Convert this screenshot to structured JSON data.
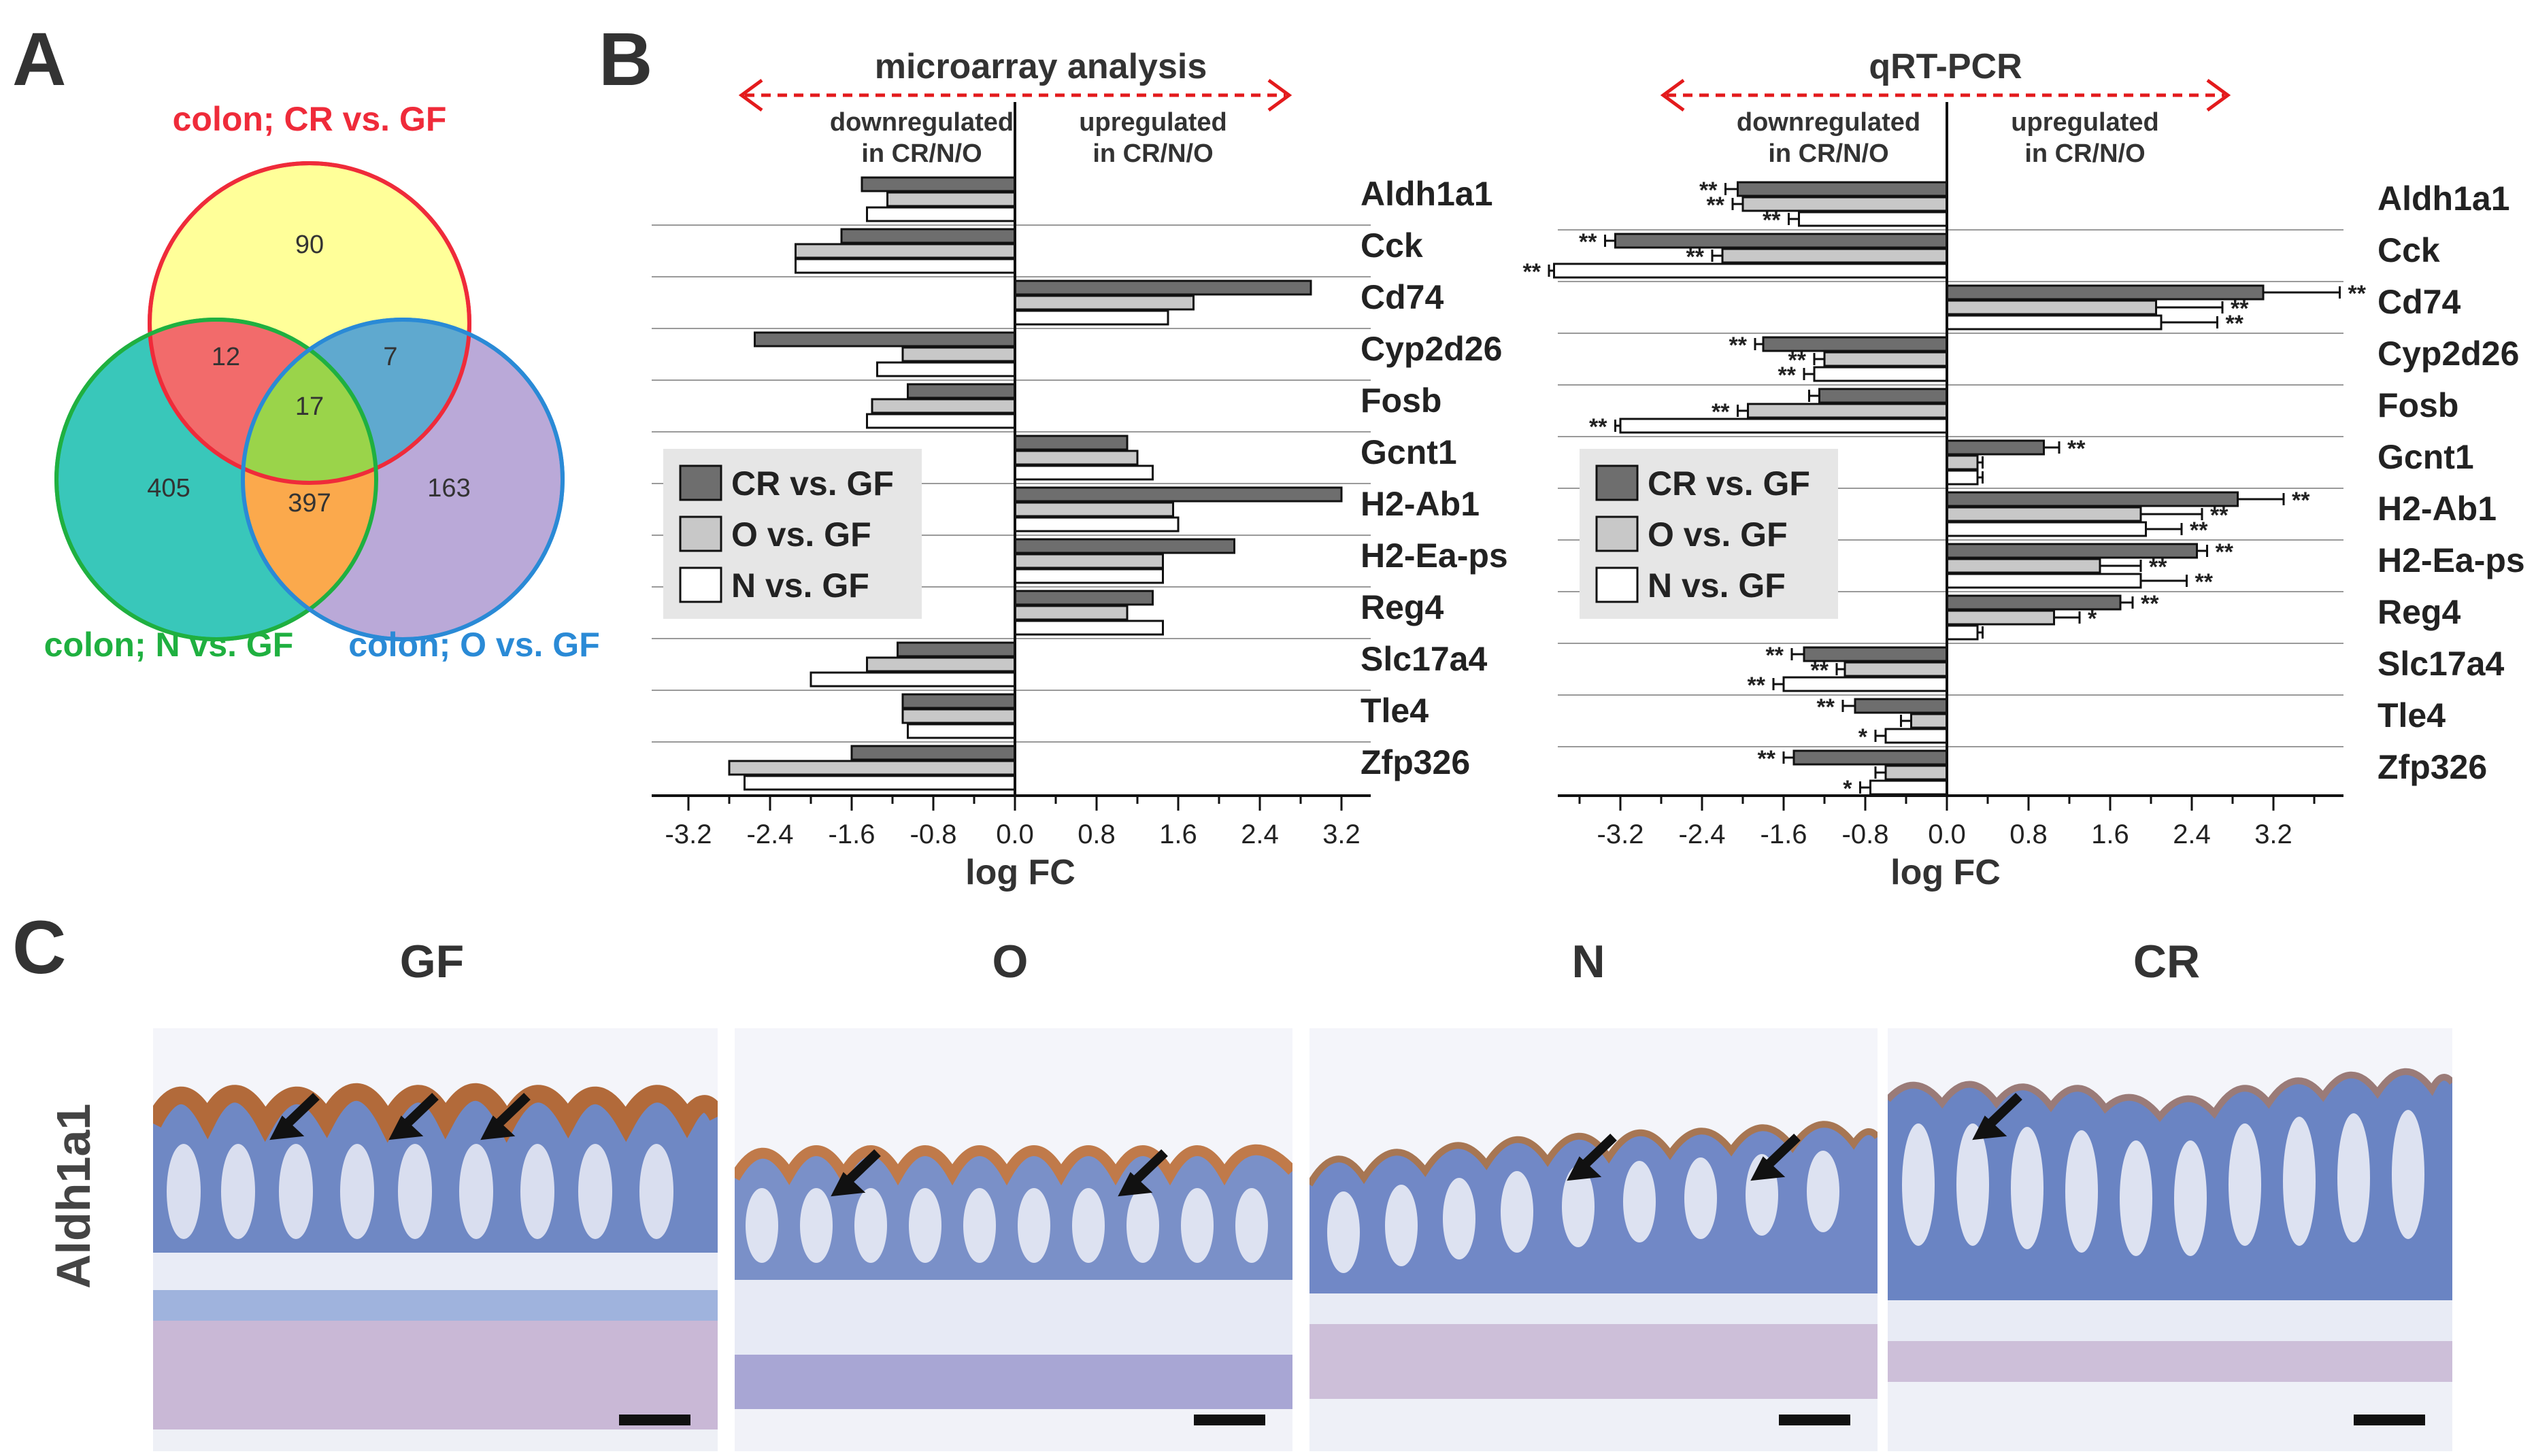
{
  "panels": {
    "a": "A",
    "b": "B",
    "c": "C"
  },
  "venn": {
    "sets": [
      {
        "name": "colon; CR vs. GF",
        "color": "#ef2b3a",
        "fill": "#ffff99"
      },
      {
        "name": "colon; N vs. GF",
        "color": "#1fb040",
        "fill": "#2ec4b6"
      },
      {
        "name": "colon; O vs. GF",
        "color": "#2a8ad6",
        "fill": "#b6a4d6"
      }
    ],
    "regions": {
      "CR_only": 90,
      "N_only": 405,
      "O_only": 163,
      "CR_N": 12,
      "CR_O": 7,
      "N_O": 397,
      "all": 17
    }
  },
  "genes": [
    "Aldh1a1",
    "Cck",
    "Cd74",
    "Cyp2d26",
    "Fosb",
    "Gcnt1",
    "H2-Ab1",
    "H2-Ea-ps",
    "Reg4",
    "Slc17a4",
    "Tle4",
    "Zfp326"
  ],
  "legend": {
    "cr": "CR vs. GF",
    "o": "O vs. GF",
    "n": "N vs. GF"
  },
  "microarray": {
    "title": "microarray analysis",
    "down": [
      "downregulated",
      "in CR/N/O"
    ],
    "up": [
      "upregulated",
      "in CR/N/O"
    ],
    "xlabel": "log FC",
    "ticks": [
      "-3.2",
      "-2.4",
      "-1.6",
      "-0.8",
      "0.0",
      "0.8",
      "1.6",
      "2.4",
      "3.2"
    ]
  },
  "qrtpcr": {
    "title": "qRT-PCR",
    "down": [
      "downregulated",
      "in CR/N/O"
    ],
    "up": [
      "upregulated",
      "in CR/N/O"
    ],
    "xlabel": "log FC",
    "ticks": [
      "-3.2",
      "-2.4",
      "-1.6",
      "-0.8",
      "0.0",
      "0.8",
      "1.6",
      "2.4",
      "3.2"
    ]
  },
  "chart_data": [
    {
      "type": "bar",
      "title": "microarray analysis",
      "xlabel": "log FC",
      "categories": [
        "Aldh1a1",
        "Cck",
        "Cd74",
        "Cyp2d26",
        "Fosb",
        "Gcnt1",
        "H2-Ab1",
        "H2-Ea-ps",
        "Reg4",
        "Slc17a4",
        "Tle4",
        "Zfp326"
      ],
      "xlim": [
        -3.6,
        3.6
      ],
      "series": [
        {
          "name": "CR vs. GF",
          "values": [
            -1.5,
            -1.7,
            2.9,
            -2.55,
            -1.05,
            1.1,
            3.2,
            2.15,
            1.35,
            -1.15,
            -1.1,
            -1.6
          ]
        },
        {
          "name": "O vs. GF",
          "values": [
            -1.25,
            -2.15,
            1.75,
            -1.1,
            -1.4,
            1.2,
            1.55,
            1.45,
            1.1,
            -1.45,
            -1.1,
            -2.8
          ]
        },
        {
          "name": "N vs. GF",
          "values": [
            -1.45,
            -2.15,
            1.5,
            -1.35,
            -1.45,
            1.35,
            1.6,
            1.45,
            1.45,
            -2.0,
            -1.05,
            -2.65
          ]
        }
      ]
    },
    {
      "type": "bar",
      "title": "qRT-PCR",
      "xlabel": "log FC",
      "categories": [
        "Aldh1a1",
        "Cck",
        "Cd74",
        "Cyp2d26",
        "Fosb",
        "Gcnt1",
        "H2-Ab1",
        "H2-Ea-ps",
        "Reg4",
        "Slc17a4",
        "Tle4",
        "Zfp326"
      ],
      "xlim": [
        -3.8,
        4.1
      ],
      "series": [
        {
          "name": "CR vs. GF",
          "values": [
            -2.05,
            -3.25,
            3.1,
            -1.8,
            -1.25,
            0.95,
            2.85,
            2.45,
            1.7,
            -1.4,
            -0.9,
            -1.5
          ],
          "errors": [
            0.12,
            0.1,
            0.75,
            0.08,
            0.1,
            0.15,
            0.45,
            0.1,
            0.12,
            0.12,
            0.12,
            0.1
          ]
        },
        {
          "name": "O vs. GF",
          "values": [
            -2.0,
            -2.2,
            2.05,
            -1.2,
            -1.95,
            0.3,
            1.9,
            1.5,
            1.05,
            -1.0,
            -0.35,
            -0.6
          ],
          "errors": [
            0.1,
            0.1,
            0.65,
            0.1,
            0.1,
            0.05,
            0.6,
            0.4,
            0.25,
            0.08,
            0.1,
            0.1
          ]
        },
        {
          "name": "N vs. GF",
          "values": [
            -1.45,
            -3.85,
            2.1,
            -1.3,
            -3.2,
            0.3,
            1.95,
            1.9,
            0.3,
            -1.6,
            -0.6,
            -0.75
          ],
          "errors": [
            0.1,
            0.05,
            0.55,
            0.1,
            0.05,
            0.05,
            0.35,
            0.45,
            0.05,
            0.1,
            0.1,
            0.1
          ]
        }
      ],
      "significance": [
        [
          "**",
          "**",
          "**"
        ],
        [
          "**",
          "**",
          "**"
        ],
        [
          "**",
          "**",
          "**"
        ],
        [
          "**",
          "**",
          "**"
        ],
        [
          "",
          "**",
          "**"
        ],
        [
          "**",
          "",
          ""
        ],
        [
          "**",
          "**",
          "**"
        ],
        [
          "**",
          "**",
          "**"
        ],
        [
          "**",
          "*",
          ""
        ],
        [
          "**",
          "**",
          "**"
        ],
        [
          "**",
          "",
          "*"
        ],
        [
          "**",
          "",
          "*"
        ]
      ]
    }
  ],
  "histology": {
    "row_label": "Aldh1a1",
    "panels": [
      {
        "title": "GF",
        "arrows": 3
      },
      {
        "title": "O",
        "arrows": 2
      },
      {
        "title": "N",
        "arrows": 2
      },
      {
        "title": "CR",
        "arrows": 1
      }
    ]
  }
}
